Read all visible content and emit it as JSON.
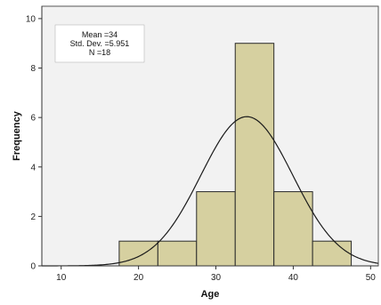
{
  "chart_data": {
    "type": "bar",
    "subtype": "histogram",
    "xlabel": "Age",
    "ylabel": "Frequency",
    "xlim": [
      7.5,
      51
    ],
    "ylim": [
      0,
      10.5
    ],
    "x_ticks": [
      10,
      20,
      30,
      40,
      50
    ],
    "y_ticks": [
      0,
      2,
      4,
      6,
      8,
      10
    ],
    "bins": [
      {
        "start": 17.5,
        "end": 22.5,
        "count": 1
      },
      {
        "start": 22.5,
        "end": 27.5,
        "count": 1
      },
      {
        "start": 27.5,
        "end": 32.5,
        "count": 3
      },
      {
        "start": 32.5,
        "end": 37.5,
        "count": 9
      },
      {
        "start": 37.5,
        "end": 42.5,
        "count": 3
      },
      {
        "start": 42.5,
        "end": 47.5,
        "count": 1
      }
    ],
    "normal_curve": {
      "mean": 34,
      "std_dev": 5.951,
      "n": 18,
      "bin_width": 5
    },
    "stats_box": {
      "mean_text": "Mean =34",
      "std_text": "Std. Dev. =5.951",
      "n_text": "N =18"
    },
    "grid": false,
    "colors": {
      "bar_fill": "#d6d0a0",
      "bar_stroke": "#2a2a2a",
      "curve": "#1a1a1a",
      "plot_background": "#f2f2f2"
    }
  }
}
